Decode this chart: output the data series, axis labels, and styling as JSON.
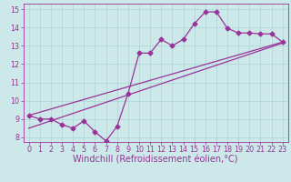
{
  "xlabel": "Windchill (Refroidissement éolien,°C)",
  "bg_color": "#cce8e8",
  "line_color": "#993399",
  "xlim": [
    -0.5,
    23.5
  ],
  "ylim": [
    7.75,
    15.3
  ],
  "xticks": [
    0,
    1,
    2,
    3,
    4,
    5,
    6,
    7,
    8,
    9,
    10,
    11,
    12,
    13,
    14,
    15,
    16,
    17,
    18,
    19,
    20,
    21,
    22,
    23
  ],
  "yticks": [
    8,
    9,
    10,
    11,
    12,
    13,
    14,
    15
  ],
  "data_x": [
    0,
    1,
    2,
    3,
    4,
    5,
    6,
    7,
    8,
    9,
    10,
    11,
    12,
    13,
    14,
    15,
    16,
    17,
    18,
    19,
    20,
    21,
    22,
    23
  ],
  "data_y": [
    9.2,
    9.0,
    9.0,
    8.7,
    8.5,
    8.9,
    8.3,
    7.8,
    8.6,
    10.4,
    12.6,
    12.6,
    13.35,
    13.0,
    13.35,
    14.2,
    14.85,
    14.85,
    13.95,
    13.7,
    13.7,
    13.65,
    13.65,
    13.2
  ],
  "line1_x": [
    0,
    23
  ],
  "line1_y": [
    9.2,
    13.2
  ],
  "line2_x": [
    0,
    23
  ],
  "line2_y": [
    8.5,
    13.15
  ],
  "grid_color": "#aad4d4",
  "tick_fontsize": 5.8,
  "xlabel_fontsize": 7.0,
  "marker": "D",
  "markersize": 2.5
}
